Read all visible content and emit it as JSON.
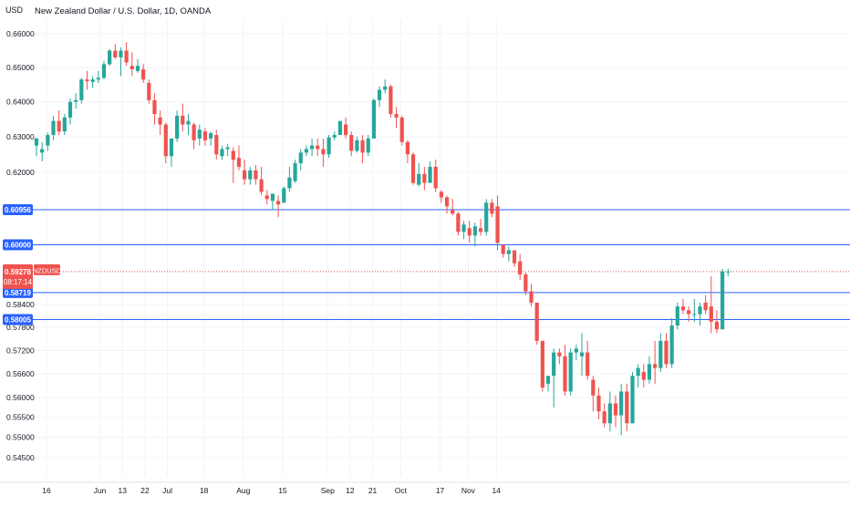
{
  "header": {
    "currency": "USD",
    "title": "New Zealand Dollar / U.S. Dollar, 1D, OANDA"
  },
  "colors": {
    "up": "#26a69a",
    "down": "#ef5350",
    "hline": "#2962ff",
    "price": "#ef5350",
    "grid": "#f0f3fa",
    "text": "#131722"
  },
  "chart_data": {
    "type": "candlestick",
    "title": "New Zealand Dollar / U.S. Dollar, 1D, OANDA",
    "ylabel": "USD",
    "ylim": [
      0.5405,
      0.6641
    ],
    "y_scale": "log",
    "y_ticks": [
      "0.66000",
      "0.65000",
      "0.64000",
      "0.63000",
      "0.62000",
      "0.58400",
      "0.57800",
      "0.57200",
      "0.56600",
      "0.56000",
      "0.55500",
      "0.55000",
      "0.54500"
    ],
    "x_ticks": [
      "16",
      "Jun",
      "13",
      "22",
      "Jul",
      "18",
      "Aug",
      "15",
      "Sep",
      "12",
      "21",
      "Oct",
      "17",
      "Nov",
      "14"
    ],
    "grid": true,
    "horizontal_lines": [
      "0.60956",
      "0.60000",
      "0.58719",
      "0.58005"
    ],
    "last_price": {
      "value": "0.59278",
      "symbol": "NZDUSD",
      "countdown": "08:17:14"
    },
    "candles": [
      [
        0.6275,
        0.6298,
        0.6245,
        0.6295
      ],
      [
        0.6255,
        0.6285,
        0.623,
        0.6265
      ],
      [
        0.6275,
        0.6312,
        0.626,
        0.6305
      ],
      [
        0.6305,
        0.636,
        0.629,
        0.6345
      ],
      [
        0.6345,
        0.6375,
        0.6305,
        0.6315
      ],
      [
        0.6315,
        0.6365,
        0.6305,
        0.6355
      ],
      [
        0.6355,
        0.641,
        0.6335,
        0.64
      ],
      [
        0.64,
        0.6425,
        0.638,
        0.6405
      ],
      [
        0.6405,
        0.647,
        0.6395,
        0.6465
      ],
      [
        0.6465,
        0.649,
        0.6435,
        0.646
      ],
      [
        0.6458,
        0.6475,
        0.644,
        0.6465
      ],
      [
        0.6465,
        0.649,
        0.6455,
        0.647
      ],
      [
        0.647,
        0.652,
        0.6465,
        0.651
      ],
      [
        0.651,
        0.6555,
        0.6505,
        0.655
      ],
      [
        0.655,
        0.657,
        0.6525,
        0.653
      ],
      [
        0.653,
        0.656,
        0.6475,
        0.655
      ],
      [
        0.655,
        0.6575,
        0.6505,
        0.6515
      ],
      [
        0.6505,
        0.6545,
        0.6475,
        0.6495
      ],
      [
        0.649,
        0.6525,
        0.6485,
        0.6505
      ],
      [
        0.6495,
        0.651,
        0.6455,
        0.6465
      ],
      [
        0.6455,
        0.6465,
        0.6395,
        0.6405
      ],
      [
        0.6405,
        0.6425,
        0.6335,
        0.6365
      ],
      [
        0.6355,
        0.6375,
        0.6305,
        0.6335
      ],
      [
        0.6335,
        0.634,
        0.6225,
        0.6245
      ],
      [
        0.6245,
        0.6285,
        0.6215,
        0.6295
      ],
      [
        0.6295,
        0.6375,
        0.6285,
        0.636
      ],
      [
        0.636,
        0.6395,
        0.6315,
        0.6335
      ],
      [
        0.6335,
        0.6365,
        0.6305,
        0.6345
      ],
      [
        0.6335,
        0.634,
        0.6265,
        0.629
      ],
      [
        0.6295,
        0.6335,
        0.6275,
        0.632
      ],
      [
        0.6315,
        0.6325,
        0.6275,
        0.629
      ],
      [
        0.6295,
        0.6315,
        0.6275,
        0.631
      ],
      [
        0.6305,
        0.632,
        0.6235,
        0.625
      ],
      [
        0.6245,
        0.6275,
        0.6235,
        0.6265
      ],
      [
        0.6265,
        0.628,
        0.6245,
        0.627
      ],
      [
        0.626,
        0.627,
        0.617,
        0.6235
      ],
      [
        0.624,
        0.6275,
        0.6205,
        0.6215
      ],
      [
        0.6205,
        0.6235,
        0.6165,
        0.618
      ],
      [
        0.618,
        0.6215,
        0.6165,
        0.6205
      ],
      [
        0.6205,
        0.622,
        0.6165,
        0.618
      ],
      [
        0.618,
        0.6215,
        0.6135,
        0.6145
      ],
      [
        0.6135,
        0.615,
        0.611,
        0.6125
      ],
      [
        0.612,
        0.614,
        0.6095,
        0.614
      ],
      [
        0.612,
        0.6135,
        0.6075,
        0.611
      ],
      [
        0.6115,
        0.616,
        0.6115,
        0.6155
      ],
      [
        0.6155,
        0.6215,
        0.6145,
        0.6185
      ],
      [
        0.6175,
        0.6235,
        0.617,
        0.6225
      ],
      [
        0.6225,
        0.6265,
        0.6205,
        0.6255
      ],
      [
        0.6255,
        0.6275,
        0.6245,
        0.6265
      ],
      [
        0.6265,
        0.6295,
        0.6245,
        0.6275
      ],
      [
        0.6275,
        0.6295,
        0.6245,
        0.6265
      ],
      [
        0.6265,
        0.6295,
        0.6215,
        0.625
      ],
      [
        0.625,
        0.6305,
        0.624,
        0.6298
      ],
      [
        0.6298,
        0.6315,
        0.629,
        0.6305
      ],
      [
        0.6305,
        0.6345,
        0.6305,
        0.6345
      ],
      [
        0.6335,
        0.6355,
        0.6295,
        0.6305
      ],
      [
        0.6305,
        0.6315,
        0.6245,
        0.626
      ],
      [
        0.626,
        0.63,
        0.6255,
        0.629
      ],
      [
        0.629,
        0.6305,
        0.6225,
        0.6255
      ],
      [
        0.6255,
        0.6305,
        0.6245,
        0.6295
      ],
      [
        0.6295,
        0.641,
        0.6295,
        0.6405
      ],
      [
        0.6405,
        0.6445,
        0.6385,
        0.6435
      ],
      [
        0.6435,
        0.6465,
        0.6425,
        0.6445
      ],
      [
        0.6445,
        0.645,
        0.6355,
        0.6365
      ],
      [
        0.6365,
        0.6385,
        0.6325,
        0.6355
      ],
      [
        0.6355,
        0.636,
        0.6275,
        0.6285
      ],
      [
        0.6285,
        0.629,
        0.6225,
        0.625
      ],
      [
        0.625,
        0.6255,
        0.6165,
        0.617
      ],
      [
        0.6165,
        0.6225,
        0.616,
        0.6195
      ],
      [
        0.6195,
        0.6215,
        0.615,
        0.617
      ],
      [
        0.617,
        0.623,
        0.617,
        0.6215
      ],
      [
        0.6215,
        0.6235,
        0.6145,
        0.6155
      ],
      [
        0.6145,
        0.615,
        0.6115,
        0.613
      ],
      [
        0.613,
        0.6135,
        0.6085,
        0.6105
      ],
      [
        0.6095,
        0.6125,
        0.608,
        0.6085
      ],
      [
        0.6085,
        0.609,
        0.6025,
        0.6035
      ],
      [
        0.6035,
        0.6065,
        0.6015,
        0.6055
      ],
      [
        0.6045,
        0.6065,
        0.6005,
        0.6025
      ],
      [
        0.6025,
        0.606,
        0.5995,
        0.605
      ],
      [
        0.6045,
        0.607,
        0.6025,
        0.6035
      ],
      [
        0.6035,
        0.6125,
        0.6025,
        0.6115
      ],
      [
        0.6115,
        0.6125,
        0.6075,
        0.6085
      ],
      [
        0.6105,
        0.6135,
        0.5985,
        0.6005
      ],
      [
        0.6,
        0.6,
        0.5965,
        0.5975
      ],
      [
        0.5975,
        0.5995,
        0.5955,
        0.5985
      ],
      [
        0.5985,
        0.5985,
        0.594,
        0.595
      ],
      [
        0.5955,
        0.5975,
        0.5905,
        0.592
      ],
      [
        0.592,
        0.5925,
        0.5865,
        0.5875
      ],
      [
        0.5875,
        0.5895,
        0.5835,
        0.5845
      ],
      [
        0.5845,
        0.5845,
        0.5735,
        0.5745
      ],
      [
        0.5745,
        0.5745,
        0.5615,
        0.5625
      ],
      [
        0.5635,
        0.5655,
        0.5615,
        0.5655
      ],
      [
        0.5655,
        0.5725,
        0.5575,
        0.5715
      ],
      [
        0.5715,
        0.5725,
        0.5685,
        0.5705
      ],
      [
        0.5705,
        0.5735,
        0.5605,
        0.5615
      ],
      [
        0.5615,
        0.5725,
        0.5605,
        0.5715
      ],
      [
        0.5715,
        0.5735,
        0.5695,
        0.5725
      ],
      [
        0.5705,
        0.5765,
        0.5655,
        0.5715
      ],
      [
        0.5715,
        0.5745,
        0.5645,
        0.5655
      ],
      [
        0.5645,
        0.5655,
        0.5565,
        0.5605
      ],
      [
        0.5605,
        0.5625,
        0.5545,
        0.5565
      ],
      [
        0.5565,
        0.5585,
        0.5525,
        0.5535
      ],
      [
        0.5535,
        0.5615,
        0.5515,
        0.5585
      ],
      [
        0.5585,
        0.5605,
        0.5525,
        0.5555
      ],
      [
        0.5555,
        0.5635,
        0.5505,
        0.5615
      ],
      [
        0.5615,
        0.5635,
        0.5515,
        0.5535
      ],
      [
        0.5535,
        0.5665,
        0.5535,
        0.5655
      ],
      [
        0.5655,
        0.5685,
        0.5625,
        0.5675
      ],
      [
        0.5665,
        0.5685,
        0.5625,
        0.5645
      ],
      [
        0.5645,
        0.5705,
        0.5635,
        0.5685
      ],
      [
        0.5685,
        0.5745,
        0.5635,
        0.5675
      ],
      [
        0.5675,
        0.5765,
        0.5665,
        0.5745
      ],
      [
        0.5745,
        0.5765,
        0.5675,
        0.5685
      ],
      [
        0.5685,
        0.5805,
        0.5675,
        0.5785
      ],
      [
        0.5785,
        0.5845,
        0.5775,
        0.5835
      ],
      [
        0.5835,
        0.5855,
        0.5815,
        0.5825
      ],
      [
        0.5825,
        0.5835,
        0.5795,
        0.5815
      ],
      [
        0.5815,
        0.5855,
        0.5795,
        0.5815
      ],
      [
        0.5815,
        0.5845,
        0.5785,
        0.5835
      ],
      [
        0.5845,
        0.5865,
        0.5815,
        0.5825
      ],
      [
        0.5835,
        0.5915,
        0.5765,
        0.5795
      ],
      [
        0.5795,
        0.5825,
        0.5765,
        0.5775
      ],
      [
        0.5775,
        0.5935,
        0.5775,
        0.5928
      ],
      [
        0.5928,
        0.5935,
        0.5915,
        0.5928
      ]
    ],
    "x_tick_positions": [
      0,
      9.5,
      13.5,
      17.5,
      21.5,
      28,
      35,
      42,
      50,
      54,
      58,
      63,
      70,
      75,
      80
    ]
  }
}
